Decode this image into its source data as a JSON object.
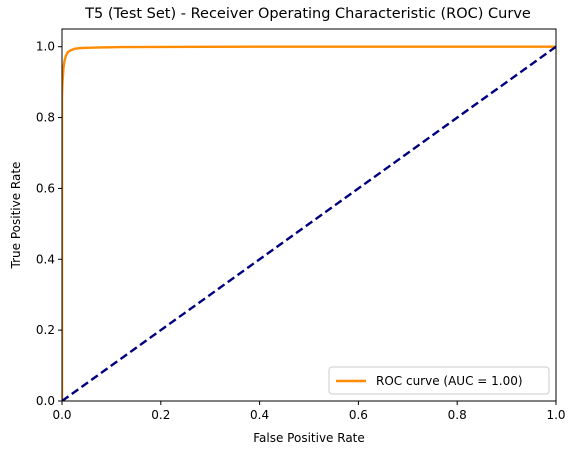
{
  "chart_data": {
    "type": "line",
    "title": "T5 (Test Set) - Receiver Operating Characteristic (ROC) Curve",
    "xlabel": "False Positive Rate",
    "ylabel": "True Positive Rate",
    "xlim": [
      0.0,
      1.0
    ],
    "ylim": [
      0.0,
      1.05
    ],
    "x_ticks": [
      "0.0",
      "0.2",
      "0.4",
      "0.6",
      "0.8",
      "1.0"
    ],
    "y_ticks": [
      "0.0",
      "0.2",
      "0.4",
      "0.6",
      "0.8",
      "1.0"
    ],
    "grid": false,
    "legend_position": "lower-right",
    "series": [
      {
        "name": "ROC curve (AUC = 1.00)",
        "color": "#ff8c00",
        "style": "solid",
        "x": [
          0.0,
          0.0,
          0.001,
          0.002,
          0.003,
          0.005,
          0.008,
          0.012,
          0.018,
          0.025,
          0.035,
          0.05,
          0.08,
          0.12,
          0.2,
          0.4,
          0.6,
          0.8,
          1.0
        ],
        "y": [
          0.0,
          0.86,
          0.9,
          0.92,
          0.94,
          0.96,
          0.975,
          0.985,
          0.99,
          0.994,
          0.996,
          0.997,
          0.998,
          0.999,
          0.9995,
          1.0,
          1.0,
          1.0,
          1.0
        ]
      },
      {
        "name": "",
        "color": "#000080",
        "style": "dashed",
        "x": [
          0.0,
          1.0
        ],
        "y": [
          0.0,
          1.0
        ]
      }
    ]
  }
}
